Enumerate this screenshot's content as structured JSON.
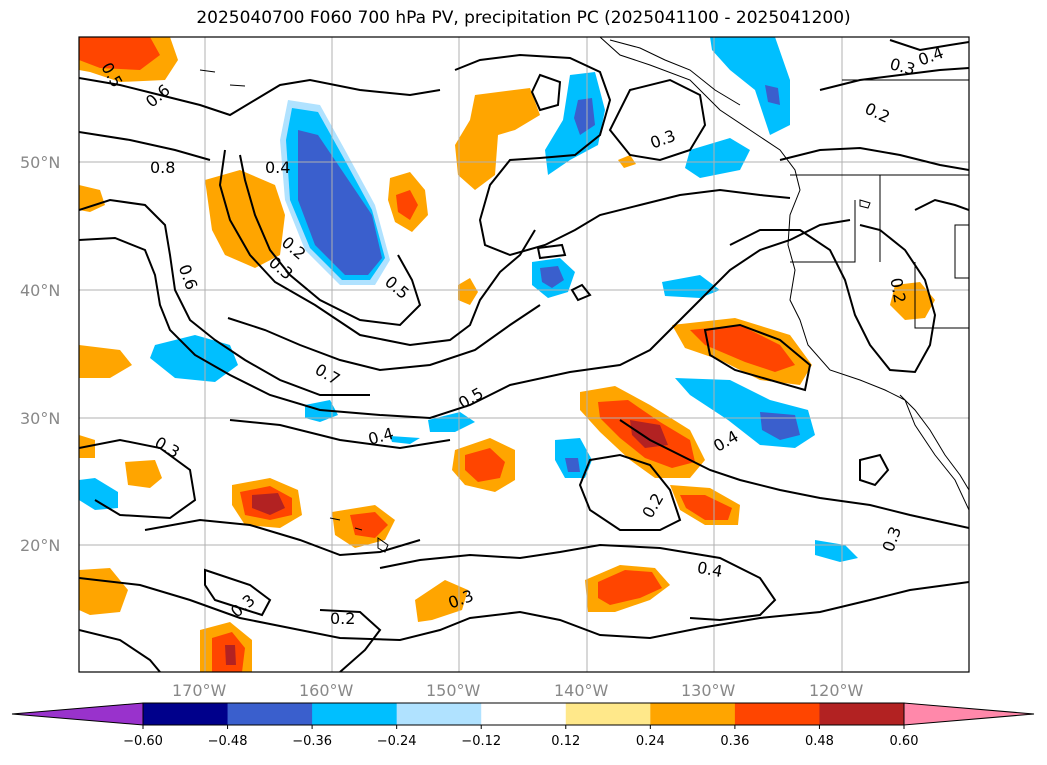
{
  "title": "2025040700 F060 700 hPa PV, precipitation PC (2025041100 - 2025041200)",
  "lat_labels": [
    "50°N",
    "40°N",
    "30°N",
    "20°N"
  ],
  "lon_labels": [
    "170°W",
    "160°W",
    "150°W",
    "140°W",
    "130°W",
    "120°W"
  ],
  "colorbar": {
    "colors": [
      "#9932cc",
      "#00008b",
      "#3a5fcd",
      "#00bfff",
      "#b0e2ff",
      "#ffffff",
      "#ffe88a",
      "#ffa500",
      "#ff4500",
      "#b22222",
      "#ff88aa"
    ],
    "tick_labels": [
      "−0.60",
      "−0.48",
      "−0.36",
      "−0.24",
      "−0.12",
      "0.12",
      "0.24",
      "0.36",
      "0.48",
      "0.60"
    ]
  },
  "contour_labels": [
    "0.5",
    "0.6",
    "0.8",
    "0.4",
    "0.2",
    "0.3",
    "0.6",
    "0.7",
    "0.4",
    "0.5",
    "0.5",
    "0.3",
    "0.4",
    "0.3",
    "0.2",
    "0.2",
    "0.4",
    "0.2",
    "0.3",
    "0.3",
    "0.3",
    "0.2",
    "0.4",
    "0.3"
  ]
}
